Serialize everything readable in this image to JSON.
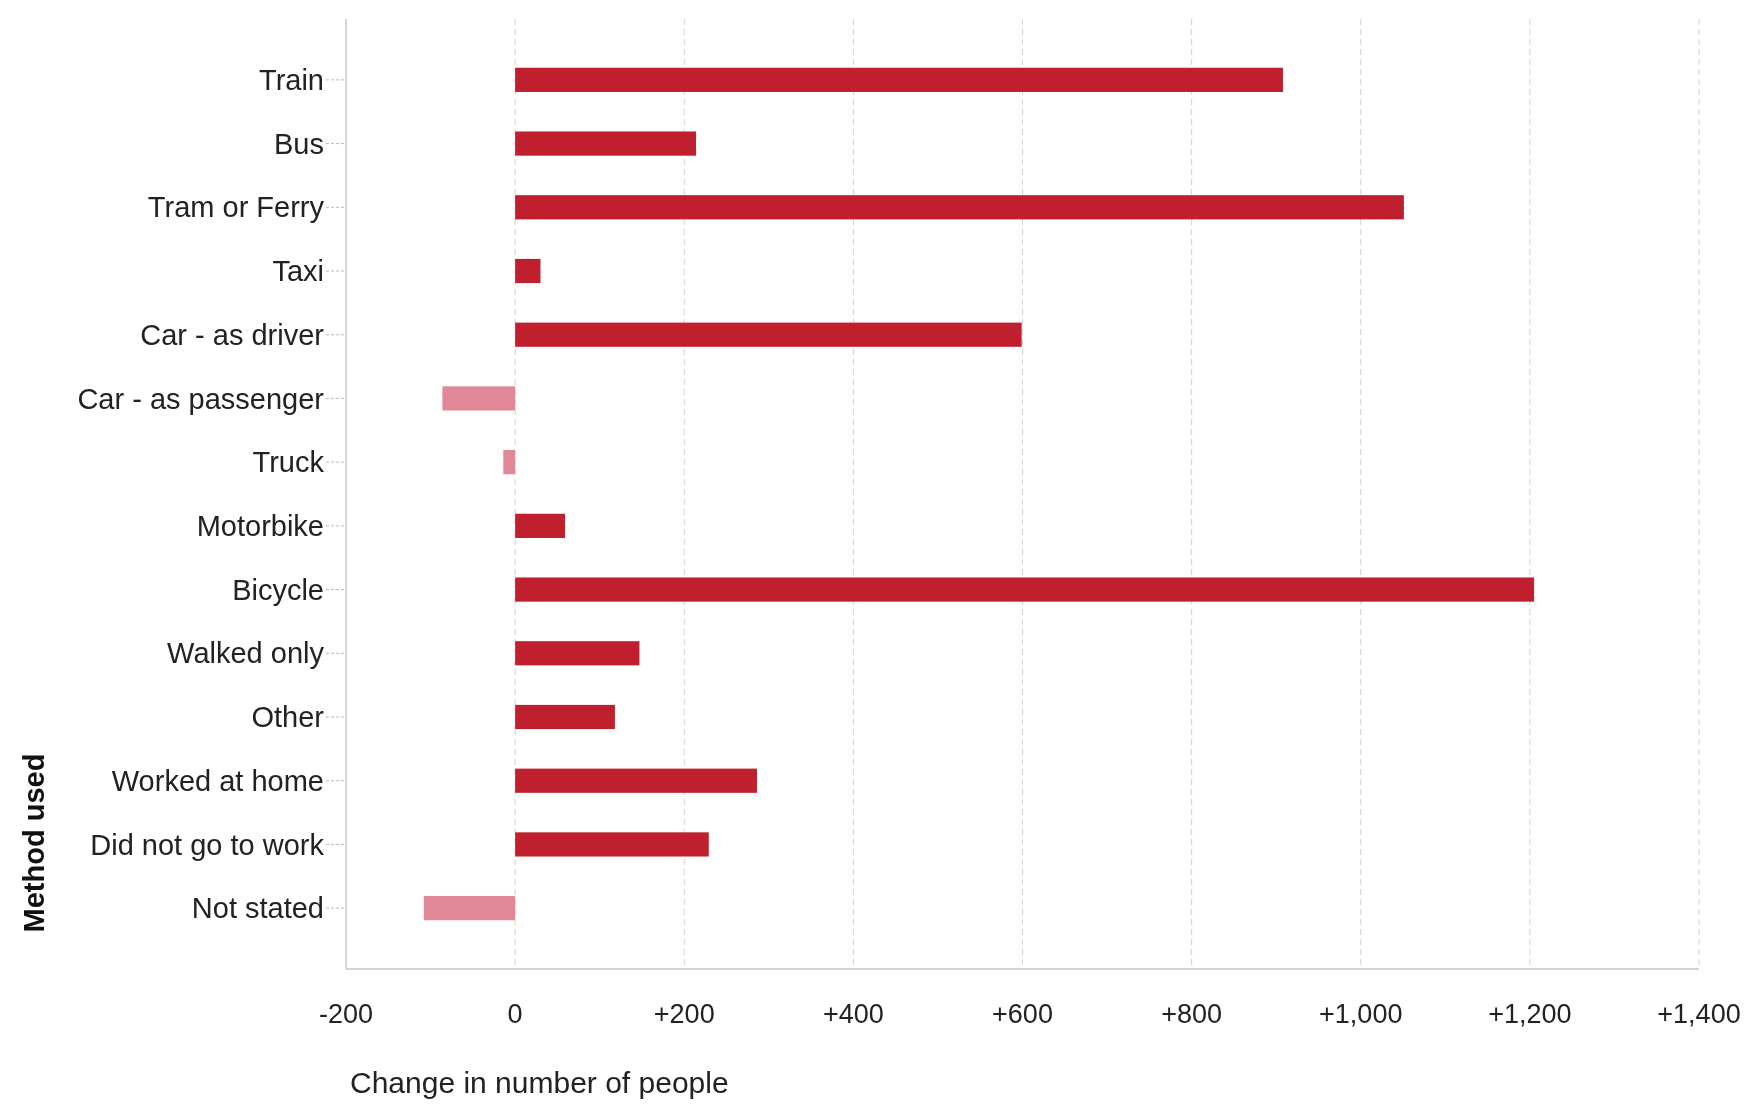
{
  "chart_data": {
    "type": "bar",
    "orientation": "horizontal",
    "xlabel": "Change in number of people",
    "ylabel": "Method used",
    "categories": [
      "Train",
      "Bus",
      "Tram or Ferry",
      "Taxi",
      "Car - as driver",
      "Car - as passenger",
      "Truck",
      "Motorbike",
      "Bicycle",
      "Walked only",
      "Other",
      "Worked at home",
      "Did not go to work",
      "Not stated"
    ],
    "values": [
      908,
      214,
      1051,
      30,
      599,
      -86,
      -14,
      59,
      1205,
      147,
      118,
      286,
      229,
      -108
    ],
    "colors": [
      "#c0202e",
      "#c0202e",
      "#c0202e",
      "#c0202e",
      "#c0202e",
      "#e08898",
      "#e08898",
      "#c0202e",
      "#c0202e",
      "#c0202e",
      "#c0202e",
      "#c0202e",
      "#c0202e",
      "#e08898"
    ],
    "xlim": [
      -200,
      1400
    ],
    "xticks": [
      -200,
      0,
      {
        "value": 200,
        "label": "+200"
      },
      {
        "value": 400,
        "label": "+400"
      },
      {
        "value": 600,
        "label": "+600"
      },
      {
        "value": 800,
        "label": "+800"
      },
      {
        "value": 1000,
        "label": "+1,000"
      },
      {
        "value": 1200,
        "label": "+1,200"
      },
      {
        "value": 1400,
        "label": "+1,400"
      }
    ],
    "grid": "x"
  }
}
